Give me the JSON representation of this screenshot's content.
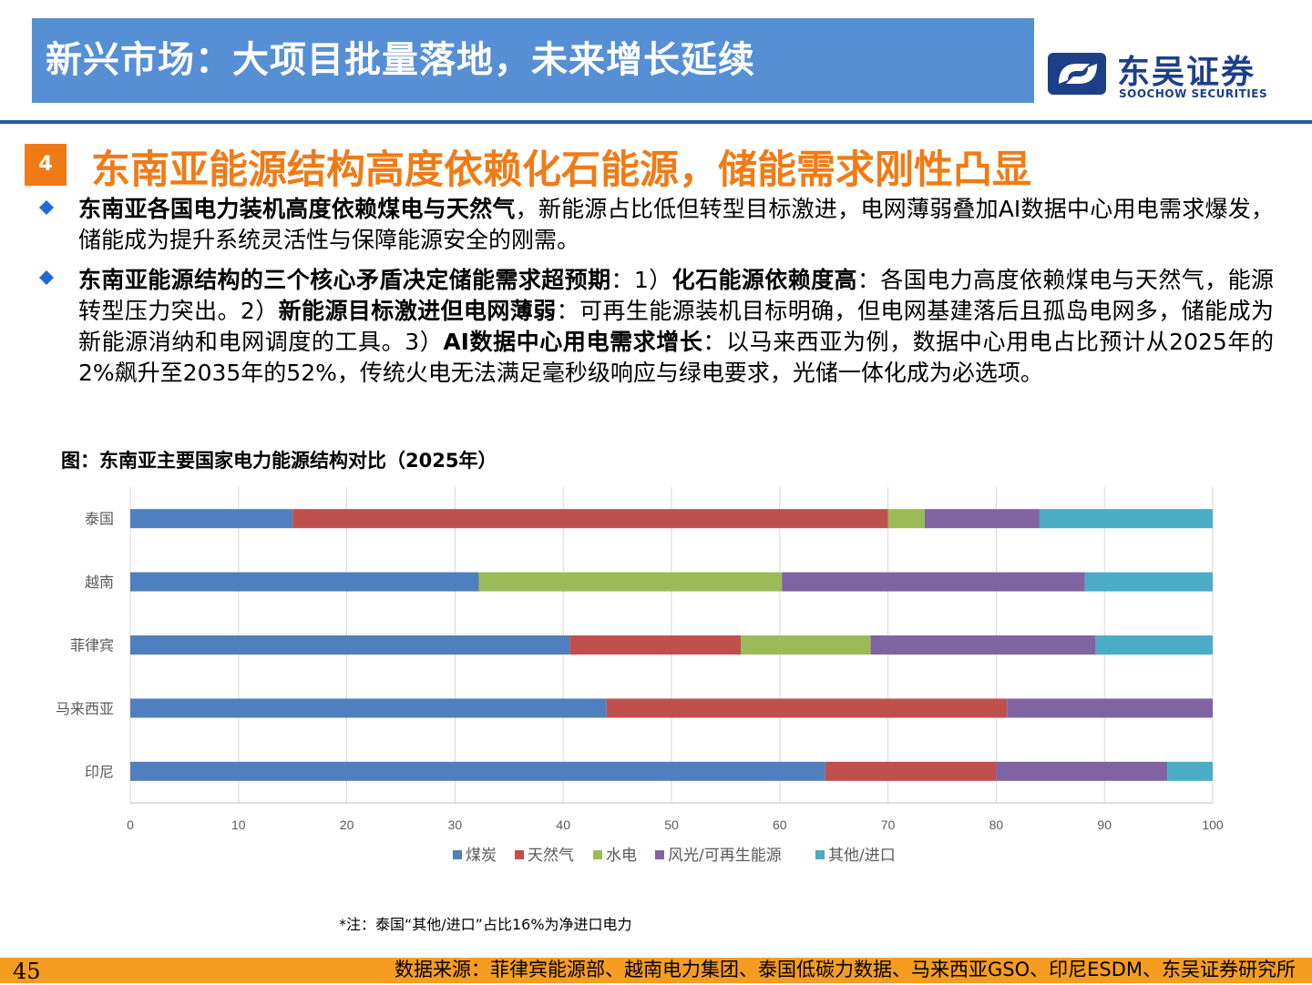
{
  "header": {
    "title": "新兴市场：大项目批量落地，未来增长延续"
  },
  "logo": {
    "cn": "东吴证券",
    "en": "SOOCHOW SECURITIES"
  },
  "section": {
    "number": "4",
    "title": "东南亚能源结构高度依赖化石能源，储能需求刚性凸显"
  },
  "bullets": [
    {
      "parts": [
        {
          "b": true,
          "t": "东南亚各国电力装机高度依赖煤电与天然气"
        },
        {
          "b": false,
          "t": "，新能源占比低但转型目标激进，电网薄弱叠加AI数据中心用电需求爆发，储能成为提升系统灵活性与保障能源安全的刚需。"
        }
      ]
    },
    {
      "parts": [
        {
          "b": true,
          "t": "东南亚能源结构的三个核心矛盾决定储能需求超预期"
        },
        {
          "b": false,
          "t": "：1）"
        },
        {
          "b": true,
          "t": "化石能源依赖度高"
        },
        {
          "b": false,
          "t": "：各国电力高度依赖煤电与天然气，能源转型压力突出。2）"
        },
        {
          "b": true,
          "t": "新能源目标激进但电网薄弱"
        },
        {
          "b": false,
          "t": "：可再生能源装机目标明确，但电网基建落后且孤岛电网多，储能成为新能源消纳和电网调度的工具。3）"
        },
        {
          "b": true,
          "t": "AI数据中心用电需求增长"
        },
        {
          "b": false,
          "t": "：以马来西亚为例，数据中心用电占比预计从2025年的2%飙升至2035年的52%，传统火电无法满足毫秒级响应与绿电要求，光储一体化成为必选项。"
        }
      ]
    }
  ],
  "figure": {
    "title": "图：东南亚主要国家电力能源结构对比（2025年）"
  },
  "chart_data": {
    "type": "bar",
    "orientation": "horizontal",
    "stacked": true,
    "categories": [
      "泰国",
      "越南",
      "菲律宾",
      "马来西亚",
      "印尼"
    ],
    "series": [
      {
        "name": "煤炭",
        "color": "#4f7fbe",
        "values": [
          15,
          32.2,
          40.6,
          44,
          64.2
        ]
      },
      {
        "name": "天然气",
        "color": "#c0504d",
        "values": [
          55,
          0,
          15.8,
          37,
          15.8
        ]
      },
      {
        "name": "水电",
        "color": "#9bbb59",
        "values": [
          3.4,
          28,
          12,
          0,
          0
        ]
      },
      {
        "name": "风光/可再生能源",
        "color": "#8064a2",
        "values": [
          10.6,
          28,
          20.8,
          19,
          15.8
        ]
      },
      {
        "name": "其他/进口",
        "color": "#4bacc6",
        "values": [
          16,
          11.8,
          10.8,
          0,
          4.2
        ]
      }
    ],
    "xlim": [
      0,
      100
    ],
    "xticks": [
      "0",
      "10",
      "20",
      "30",
      "40",
      "50",
      "60",
      "70",
      "80",
      "90",
      "100"
    ],
    "grid": true,
    "legend": "bottom"
  },
  "note": "*注：泰国“其他/进口”占比16%为净进口电力",
  "footer": {
    "page": "45",
    "source": "数据来源：菲律宾能源部、越南电力集团、泰国低碳力数据、马来西亚GSO、印尼ESDM、东吴证券研究所"
  }
}
